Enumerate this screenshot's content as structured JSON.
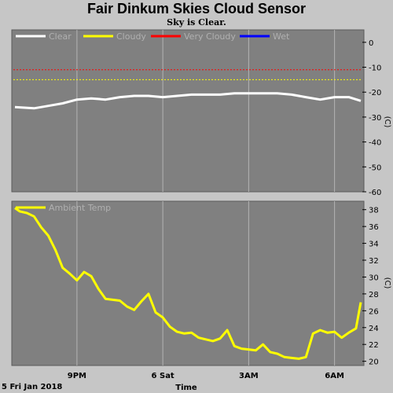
{
  "title": "Fair Dinkum Skies Cloud Sensor",
  "subtitle": "Sky is Clear.",
  "footer": {
    "date": "5 Fri Jan 2018",
    "xlabel": "Time"
  },
  "x_ticks": [
    "9PM",
    "6 Sat",
    "3AM",
    "6AM"
  ],
  "colors": {
    "clear": "#ffffff",
    "cloudy": "#ffff00",
    "very_cloudy": "#ff0000",
    "wet": "#0000ff",
    "panel_bg": "#808080",
    "page_bg": "#c6c6c6"
  },
  "chart_data": [
    {
      "type": "line",
      "name": "sky",
      "unit": "(C)",
      "ylim": [
        -60,
        5
      ],
      "yticks": [
        0,
        -10,
        -20,
        -30,
        -40,
        -50,
        -60
      ],
      "legend": [
        "Clear",
        "Cloudy",
        "Very Cloudy",
        "Wet"
      ],
      "thresholds": [
        {
          "label": "Cloudy",
          "value": -15,
          "color": "#ffff00"
        },
        {
          "label": "Very Cloudy",
          "value": -11,
          "color": "#ff0000"
        }
      ],
      "series": [
        {
          "name": "Clear",
          "color": "#ffffff",
          "x": [
            "18:50",
            "19:30",
            "20:00",
            "20:30",
            "21:00",
            "21:30",
            "22:00",
            "22:30",
            "23:00",
            "23:30",
            "00:00",
            "00:30",
            "01:00",
            "01:30",
            "02:00",
            "02:30",
            "03:00",
            "03:30",
            "04:00",
            "04:30",
            "05:00",
            "05:30",
            "06:00",
            "06:30",
            "06:55"
          ],
          "y": [
            -26,
            -26.5,
            -25.5,
            -24.5,
            -23,
            -22.5,
            -23,
            -22,
            -21.5,
            -21.5,
            -22,
            -21.5,
            -21,
            -21,
            -21,
            -20.5,
            -20.5,
            -20.5,
            -20.5,
            -21,
            -22,
            -23,
            -22,
            -22,
            -23.5
          ]
        }
      ]
    },
    {
      "type": "line",
      "name": "ambient",
      "unit": "(C)",
      "ylim": [
        19.5,
        39
      ],
      "yticks": [
        38,
        36,
        34,
        32,
        30,
        28,
        26,
        24,
        22,
        20
      ],
      "legend": [
        "Ambient Temp"
      ],
      "series": [
        {
          "name": "Ambient Temp",
          "color": "#ffff00",
          "x": [
            "18:50",
            "19:00",
            "19:15",
            "19:30",
            "19:45",
            "20:00",
            "20:15",
            "20:30",
            "20:45",
            "21:00",
            "21:15",
            "21:30",
            "21:45",
            "22:00",
            "22:15",
            "22:30",
            "22:45",
            "23:00",
            "23:15",
            "23:30",
            "23:45",
            "00:00",
            "00:15",
            "00:30",
            "00:45",
            "01:00",
            "01:15",
            "01:30",
            "01:45",
            "02:00",
            "02:15",
            "02:30",
            "02:45",
            "03:00",
            "03:15",
            "03:30",
            "03:45",
            "04:00",
            "04:15",
            "04:30",
            "04:45",
            "05:00",
            "05:15",
            "05:30",
            "05:45",
            "06:00",
            "06:15",
            "06:30",
            "06:45",
            "06:55"
          ],
          "y": [
            38.2,
            37.8,
            37.6,
            37.2,
            35.9,
            34.9,
            33.2,
            31.1,
            30.4,
            29.6,
            30.6,
            30.1,
            28.6,
            27.4,
            27.3,
            27.2,
            26.5,
            26.1,
            27.1,
            28.0,
            25.8,
            25.2,
            24.1,
            23.5,
            23.3,
            23.4,
            22.8,
            22.6,
            22.4,
            22.7,
            23.7,
            21.8,
            21.5,
            21.4,
            21.3,
            22.0,
            21.1,
            20.9,
            20.5,
            20.4,
            20.3,
            20.5,
            23.3,
            23.7,
            23.4,
            23.5,
            22.8,
            23.4,
            23.9,
            27.0
          ]
        }
      ]
    }
  ]
}
